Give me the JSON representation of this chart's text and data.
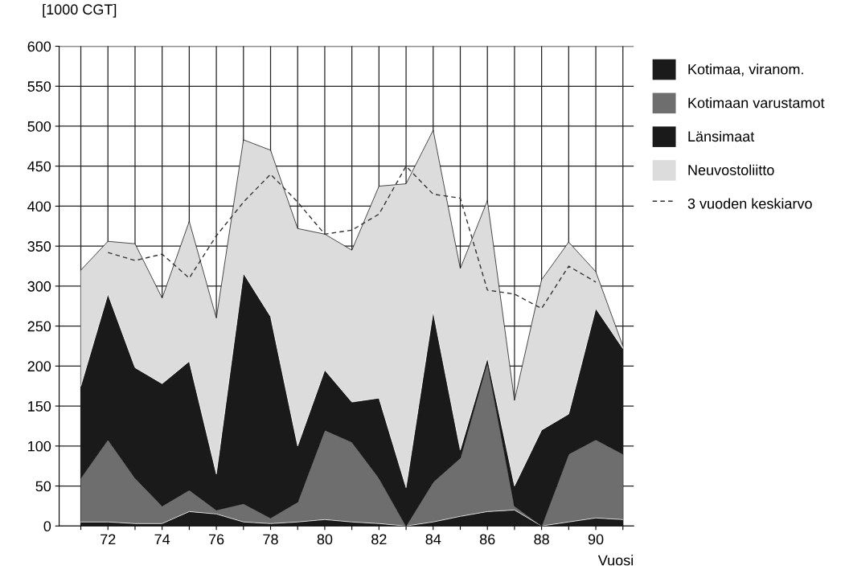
{
  "chart_data": {
    "type": "area",
    "stacked": true,
    "ylabel": "[1000 CGT]",
    "xlabel": "Vuosi",
    "x": [
      71,
      72,
      73,
      74,
      75,
      76,
      77,
      78,
      79,
      80,
      81,
      82,
      83,
      84,
      85,
      86,
      87,
      88,
      89,
      90,
      91
    ],
    "xlim": [
      70.2,
      91.4
    ],
    "ylim": [
      0,
      600
    ],
    "xticks": [
      {
        "value": 71,
        "label": null
      },
      72,
      {
        "value": 73,
        "label": null
      },
      74,
      {
        "value": 75,
        "label": null
      },
      76,
      {
        "value": 77,
        "label": null
      },
      78,
      {
        "value": 79,
        "label": null
      },
      80,
      {
        "value": 81,
        "label": null
      },
      82,
      {
        "value": 83,
        "label": null
      },
      84,
      {
        "value": 85,
        "label": null
      },
      86,
      {
        "value": 87,
        "label": null
      },
      88,
      {
        "value": 89,
        "label": null
      },
      90,
      {
        "value": 91,
        "label": null
      }
    ],
    "yticks": [
      0,
      50,
      100,
      150,
      200,
      250,
      300,
      350,
      400,
      450,
      500,
      550,
      600
    ],
    "grid": true,
    "legend": "right",
    "series": [
      {
        "name": "Kotimaa, viranom.",
        "color": "#1a1a1a",
        "values": [
          5,
          5,
          3,
          3,
          18,
          15,
          5,
          3,
          5,
          8,
          5,
          3,
          0,
          5,
          12,
          18,
          20,
          0,
          5,
          10,
          8
        ]
      },
      {
        "name": "Kotimaan varustamot",
        "color": "#6e6e6e",
        "values": [
          55,
          103,
          57,
          22,
          27,
          5,
          23,
          7,
          25,
          112,
          100,
          57,
          0,
          50,
          73,
          187,
          5,
          0,
          85,
          98,
          82
        ]
      },
      {
        "name": "Länsimaat",
        "color": "#1a1a1a",
        "values": [
          115,
          182,
          138,
          153,
          161,
          45,
          288,
          252,
          70,
          75,
          50,
          100,
          48,
          213,
          10,
          5,
          25,
          120,
          50,
          164,
          132
        ]
      },
      {
        "name": "Neuvostoliitto",
        "color": "#dcdcdc",
        "values": [
          145,
          66,
          155,
          107,
          175,
          195,
          167,
          208,
          272,
          170,
          190,
          265,
          380,
          227,
          227,
          197,
          107,
          188,
          215,
          46,
          3
        ]
      },
      {
        "name": "3 vuoden keskiarvo",
        "type": "line",
        "line_style": "dashed",
        "color": "#333333",
        "x": [
          72,
          73,
          74,
          75,
          76,
          77,
          78,
          79,
          80,
          81,
          82,
          83,
          84,
          85,
          86,
          87,
          88,
          89,
          90
        ],
        "values": [
          342,
          332,
          340,
          310,
          363,
          405,
          440,
          405,
          365,
          370,
          390,
          450,
          415,
          410,
          295,
          290,
          272,
          325,
          305
        ]
      }
    ]
  }
}
